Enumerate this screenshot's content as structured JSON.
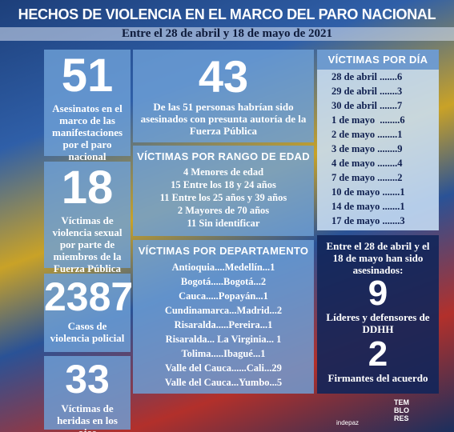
{
  "header": {
    "title": "HECHOS DE VIOLENCIA EN EL MARCO DEL PARO NACIONAL",
    "subtitle": "Entre el 28 de abril y 18 de mayo de 2021"
  },
  "left_boxes": [
    {
      "number": "51",
      "text": "Asesinatos en el marco de las manifestaciones por el paro nacional"
    },
    {
      "number": "18",
      "text": "Víctimas de violencia sexual por parte de miembros de la Fuerza Pública"
    },
    {
      "number": "2387",
      "text": "Casos de violencia policial"
    },
    {
      "number": "33",
      "text": "Víctimas de heridas en los ojos"
    }
  ],
  "middle": {
    "killed": {
      "number": "43",
      "text": "De las 51 personas habrían sido asesinados con presunta autoría de la Fuerza Pública"
    },
    "age": {
      "title": "VÍCTIMAS POR RANGO DE EDAD",
      "lines": [
        "4 Menores de edad",
        "15 Entre los 18 y 24 años",
        "11 Entre los 25 años y 39 años",
        "2 Mayores de 70 años",
        "11 Sin identificar"
      ]
    },
    "department": {
      "title": "VÍCTIMAS POR DEPARTAMENTO",
      "lines": [
        "Antioquia....Medellín...1",
        "Bogotá.....Bogotá...2",
        "Cauca.....Popayán...1",
        "Cundinamarca...Madrid...2",
        "Risaralda.....Pereira...1",
        "Risaralda... La Virginia... 1",
        "Tolima.....Ibagué...1",
        "Valle del Cauca......Cali...29",
        "Valle del Cauca...Yumbo...5"
      ]
    }
  },
  "right": {
    "per_day": {
      "title": "VÍCTIMAS POR DÍA",
      "lines": [
        "28 de abril .......6",
        "29 de abril .......3",
        "30 de abril .......7",
        "1 de mayo  ........6",
        "2 de mayo ........1",
        "3 de mayo ........9",
        "4 de mayo ........4",
        "7 de mayo ........2",
        "10 de mayo .......1",
        "14 de mayo .......1",
        "17 de mayo .......3"
      ]
    },
    "leaders": {
      "intro": "Entre el 28 de abril y el 18 de mayo han sido asesinados:",
      "number1": "9",
      "text1": "Líderes y defensores de DDHH",
      "number2": "2",
      "text2": "Firmantes del acuerdo"
    },
    "logos": [
      "indepaz",
      "TEM",
      "BLO",
      "RES"
    ]
  }
}
